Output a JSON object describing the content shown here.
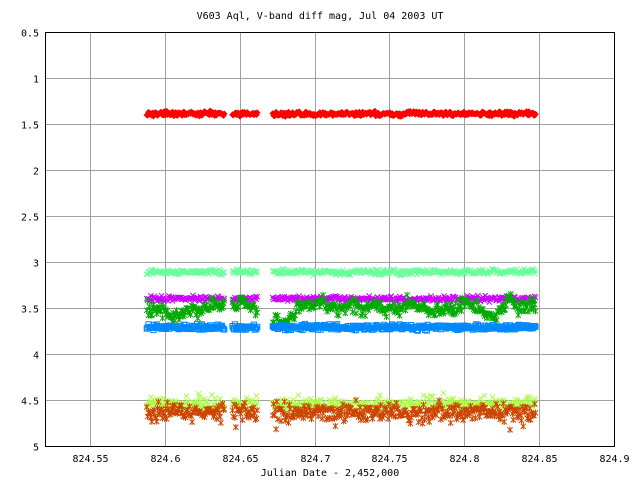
{
  "chart_data": {
    "type": "scatter",
    "title": "V603 Aql, V-band diff mag, Jul 04 2003 UT",
    "xlabel": "Julian Date - 2,452,000",
    "ylabel": "",
    "xlim": [
      824.52,
      824.9
    ],
    "ylim": [
      0.5,
      5
    ],
    "y_inverted": true,
    "grid": true,
    "legend": "none",
    "x_start": 824.588,
    "x_end": 824.848,
    "gaps": [
      [
        824.64,
        824.645
      ],
      [
        824.662,
        824.672
      ]
    ],
    "x_ticks": [
      {
        "value": 824.55,
        "label": "824.55"
      },
      {
        "value": 824.6,
        "label": "824.6"
      },
      {
        "value": 824.65,
        "label": "824.65"
      },
      {
        "value": 824.7,
        "label": "824.7"
      },
      {
        "value": 824.75,
        "label": "824.75"
      },
      {
        "value": 824.8,
        "label": "824.8"
      },
      {
        "value": 824.85,
        "label": "824.85"
      },
      {
        "value": 824.9,
        "label": "824.9"
      }
    ],
    "y_ticks": [
      {
        "value": 0.5,
        "label": "0.5"
      },
      {
        "value": 1,
        "label": "1"
      },
      {
        "value": 1.5,
        "label": "1.5"
      },
      {
        "value": 2,
        "label": "2"
      },
      {
        "value": 2.5,
        "label": "2.5"
      },
      {
        "value": 3,
        "label": "3"
      },
      {
        "value": 3.5,
        "label": "3.5"
      },
      {
        "value": 4,
        "label": "4"
      },
      {
        "value": 4.5,
        "label": "4.5"
      },
      {
        "value": 5,
        "label": "5"
      }
    ],
    "series": [
      {
        "color": "#ff0000",
        "marker": "diamond",
        "level": 1.39,
        "scatter": 0.012
      },
      {
        "color": "#66ff99",
        "marker": "x",
        "level": 3.11,
        "scatter": 0.015
      },
      {
        "color": "#cc00ff",
        "marker": "x",
        "level": 3.4,
        "scatter": 0.015
      },
      {
        "color": "#00aa00",
        "marker": "star",
        "level": 3.52,
        "scatter": 0.09
      },
      {
        "color": "#0088ff",
        "marker": "square",
        "level": 3.71,
        "scatter": 0.015
      },
      {
        "color": "#aaff44",
        "marker": "x",
        "level": 4.55,
        "scatter": 0.03
      },
      {
        "color": "#cc4400",
        "marker": "star",
        "level": 4.63,
        "scatter": 0.045
      }
    ]
  }
}
